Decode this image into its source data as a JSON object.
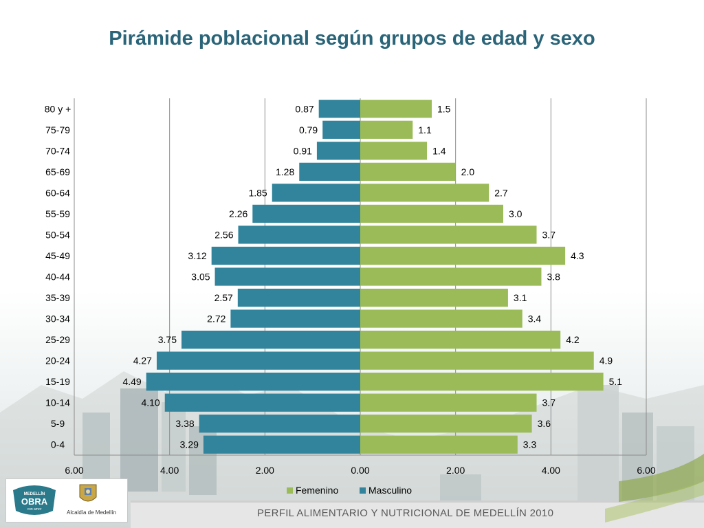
{
  "title": "Pirámide poblacional según grupos de edad y sexo",
  "footer": {
    "banner_text": "PERFIL ALIMENTARIO Y NUTRICIONAL DE MEDELLÍN 2010",
    "logo_caption": "Alcaldía de Medellín",
    "logo_text": "MEDELLÍN OBRA con amor"
  },
  "colors": {
    "title": "#2a6478",
    "femenino": "#9bbb59",
    "masculino": "#31849b"
  },
  "chart_data": {
    "type": "bar",
    "orientation": "horizontal-pyramid",
    "title": "Pirámide poblacional según grupos de edad y sexo",
    "categories": [
      "80 y +",
      "75-79",
      "70-74",
      "65-69",
      "60-64",
      "55-59",
      "50-54",
      "45-49",
      "40-44",
      "35-39",
      "30-34",
      "25-29",
      "20-24",
      "15-19",
      "10-14",
      "5-9",
      "0-4"
    ],
    "series": [
      {
        "name": "Masculino",
        "side": "left",
        "values": [
          0.87,
          0.79,
          0.91,
          1.28,
          1.85,
          2.26,
          2.56,
          3.12,
          3.05,
          2.57,
          2.72,
          3.75,
          4.27,
          4.49,
          4.1,
          3.38,
          3.29
        ],
        "labels": [
          "0.87",
          "0.79",
          "0.91",
          "1.28",
          "1.85",
          "2.26",
          "2.56",
          "3.12",
          "3.05",
          "2.57",
          "2.72",
          "3.75",
          "4.27",
          "4.49",
          "4.10",
          "3.38",
          "3.29"
        ]
      },
      {
        "name": "Femenino",
        "side": "right",
        "values": [
          1.5,
          1.1,
          1.4,
          2.0,
          2.7,
          3.0,
          3.7,
          4.3,
          3.8,
          3.1,
          3.4,
          4.2,
          4.9,
          5.1,
          3.7,
          3.6,
          3.3
        ],
        "labels": [
          "1.5",
          "1.1",
          "1.4",
          "2.0",
          "2.7",
          "3.0",
          "3.7",
          "4.3",
          "3.8",
          "3.1",
          "3.4",
          "4.2",
          "4.9",
          "5.1",
          "3.7",
          "3.6",
          "3.3"
        ]
      }
    ],
    "xlim": [
      -6,
      6
    ],
    "xticks": [
      "6.00",
      "4.00",
      "2.00",
      "0.00",
      "2.00",
      "4.00",
      "6.00"
    ],
    "xtick_values": [
      -6,
      -4,
      -2,
      0,
      2,
      4,
      6
    ],
    "legend": [
      "Femenino",
      "Masculino"
    ],
    "legend_position": "bottom",
    "grid": true
  }
}
